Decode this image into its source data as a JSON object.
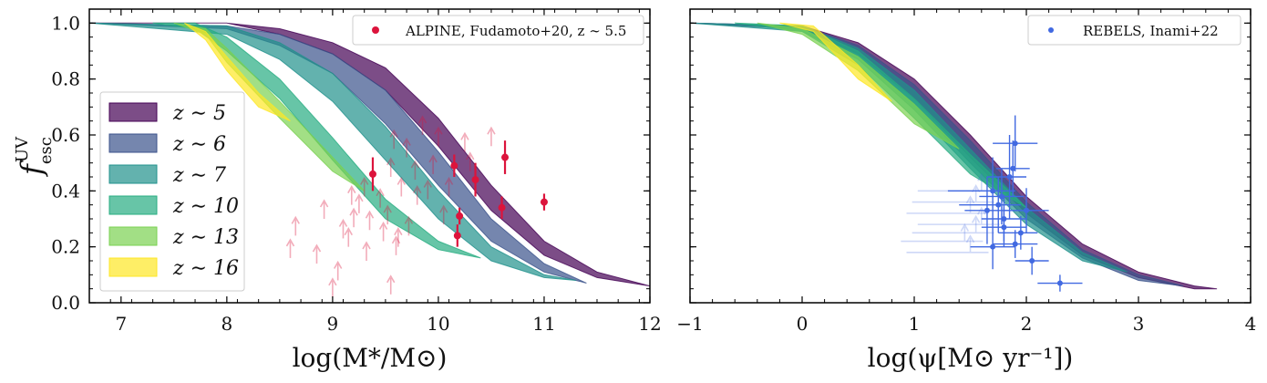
{
  "chart_data": [
    {
      "type": "area",
      "panel": "left",
      "xlabel": "log(M*/M⊙)",
      "ylabel": "f_esc^UV",
      "ylabel_main": "f",
      "ylabel_sup": "UV",
      "ylabel_sub": "esc",
      "xlim": [
        6.7,
        12
      ],
      "ylim": [
        0,
        1.05
      ],
      "xticks": [
        7,
        8,
        9,
        10,
        11,
        12
      ],
      "yticks": [
        0.0,
        0.2,
        0.4,
        0.6,
        0.8,
        1.0
      ],
      "xtick_labels": [
        "7",
        "8",
        "9",
        "10",
        "11",
        "12"
      ],
      "ytick_labels": [
        "0.0",
        "0.2",
        "0.4",
        "0.6",
        "0.8",
        "1.0"
      ],
      "legend_position": "center-left",
      "series": [
        {
          "name": "z ∼ 5",
          "label": "z ∼ 5",
          "color": "#440154",
          "x": [
            6.7,
            8.0,
            8.5,
            9.0,
            9.5,
            10.0,
            10.5,
            11.0,
            11.5,
            12.0
          ],
          "upper": [
            1.0,
            1.0,
            0.98,
            0.93,
            0.84,
            0.66,
            0.42,
            0.22,
            0.11,
            0.06
          ],
          "lower": [
            1.0,
            1.0,
            0.96,
            0.89,
            0.76,
            0.56,
            0.33,
            0.17,
            0.09,
            0.06
          ]
        },
        {
          "name": "z ∼ 6",
          "label": "z ∼ 6",
          "color": "#3b528b",
          "x": [
            6.7,
            8.0,
            8.5,
            9.0,
            9.5,
            10.0,
            10.5,
            11.0,
            11.4
          ],
          "upper": [
            1.0,
            0.99,
            0.96,
            0.89,
            0.76,
            0.54,
            0.3,
            0.14,
            0.07
          ],
          "lower": [
            1.0,
            0.98,
            0.92,
            0.82,
            0.64,
            0.42,
            0.22,
            0.11,
            0.07
          ]
        },
        {
          "name": "z ∼ 7",
          "label": "z ∼ 7",
          "color": "#21918c",
          "x": [
            6.7,
            8.0,
            8.5,
            9.0,
            9.5,
            10.0,
            10.5,
            11.0,
            11.3
          ],
          "upper": [
            1.0,
            0.99,
            0.93,
            0.82,
            0.63,
            0.4,
            0.2,
            0.1,
            0.08
          ],
          "lower": [
            1.0,
            0.96,
            0.87,
            0.72,
            0.51,
            0.3,
            0.15,
            0.09,
            0.08
          ]
        },
        {
          "name": "z ∼ 10",
          "label": "z ∼ 10",
          "color": "#27ad81",
          "x": [
            7.3,
            7.7,
            8.0,
            8.5,
            9.0,
            9.5,
            10.0,
            10.4
          ],
          "upper": [
            1.0,
            1.0,
            0.95,
            0.8,
            0.59,
            0.37,
            0.22,
            0.16
          ],
          "lower": [
            1.0,
            0.98,
            0.9,
            0.73,
            0.51,
            0.3,
            0.19,
            0.16
          ]
        },
        {
          "name": "z ∼ 13",
          "label": "z ∼ 13",
          "color": "#7ad151",
          "x": [
            7.5,
            7.8,
            8.0,
            8.5,
            9.0,
            9.3
          ],
          "upper": [
            1.0,
            0.98,
            0.91,
            0.72,
            0.52,
            0.4
          ],
          "lower": [
            1.0,
            0.96,
            0.86,
            0.66,
            0.47,
            0.4
          ]
        },
        {
          "name": "z ∼ 16",
          "label": "z ∼ 16",
          "color": "#fde725",
          "x": [
            7.6,
            7.8,
            8.0,
            8.3,
            8.6
          ],
          "upper": [
            1.0,
            0.97,
            0.88,
            0.75,
            0.65
          ],
          "lower": [
            1.0,
            0.94,
            0.83,
            0.7,
            0.65
          ]
        }
      ],
      "scatter": {
        "name": "ALPINE, Fudamoto+20, z ∼ 5.5",
        "label": "ALPINE, Fudamoto+20, z ∼ 5.5",
        "color": "#dc143c",
        "points": [
          {
            "x": 9.38,
            "y": 0.46,
            "err_lo": 0.06,
            "err_hi": 0.06
          },
          {
            "x": 10.15,
            "y": 0.49,
            "err_lo": 0.04,
            "err_hi": 0.04
          },
          {
            "x": 10.2,
            "y": 0.31,
            "err_lo": 0.03,
            "err_hi": 0.03
          },
          {
            "x": 10.18,
            "y": 0.24,
            "err_lo": 0.04,
            "err_hi": 0.04
          },
          {
            "x": 10.35,
            "y": 0.44,
            "err_lo": 0.06,
            "err_hi": 0.06
          },
          {
            "x": 10.6,
            "y": 0.34,
            "err_lo": 0.04,
            "err_hi": 0.04
          },
          {
            "x": 10.63,
            "y": 0.52,
            "err_lo": 0.06,
            "err_hi": 0.06
          },
          {
            "x": 11.0,
            "y": 0.36,
            "err_lo": 0.03,
            "err_hi": 0.03
          }
        ],
        "lower_limits": [
          {
            "x": 8.6,
            "y": 0.16
          },
          {
            "x": 8.65,
            "y": 0.24
          },
          {
            "x": 8.85,
            "y": 0.14
          },
          {
            "x": 8.92,
            "y": 0.3
          },
          {
            "x": 9.05,
            "y": 0.08
          },
          {
            "x": 9.1,
            "y": 0.23
          },
          {
            "x": 9.15,
            "y": 0.2
          },
          {
            "x": 9.18,
            "y": 0.35
          },
          {
            "x": 9.2,
            "y": 0.27
          },
          {
            "x": 9.25,
            "y": 0.32
          },
          {
            "x": 9.3,
            "y": 0.38
          },
          {
            "x": 9.32,
            "y": 0.15
          },
          {
            "x": 9.35,
            "y": 0.26
          },
          {
            "x": 9.45,
            "y": 0.34
          },
          {
            "x": 9.48,
            "y": 0.22
          },
          {
            "x": 9.52,
            "y": 0.28
          },
          {
            "x": 9.55,
            "y": 0.45
          },
          {
            "x": 9.58,
            "y": 0.55
          },
          {
            "x": 9.6,
            "y": 0.17
          },
          {
            "x": 9.62,
            "y": 0.2
          },
          {
            "x": 9.65,
            "y": 0.38
          },
          {
            "x": 9.7,
            "y": 0.52
          },
          {
            "x": 9.72,
            "y": 0.24
          },
          {
            "x": 9.78,
            "y": 0.44
          },
          {
            "x": 9.8,
            "y": 0.35
          },
          {
            "x": 9.85,
            "y": 0.6
          },
          {
            "x": 9.9,
            "y": 0.37
          },
          {
            "x": 9.95,
            "y": 0.46
          },
          {
            "x": 10.0,
            "y": 0.56
          },
          {
            "x": 10.05,
            "y": 0.28
          },
          {
            "x": 10.1,
            "y": 0.38
          },
          {
            "x": 10.25,
            "y": 0.54
          },
          {
            "x": 10.3,
            "y": 0.47
          },
          {
            "x": 10.5,
            "y": 0.56
          },
          {
            "x": 9.0,
            "y": 0.02
          },
          {
            "x": 9.55,
            "y": 0.03
          }
        ]
      }
    },
    {
      "type": "area",
      "panel": "right",
      "xlabel": "log(ψ[M⊙ yr⁻¹])",
      "xlim": [
        -1,
        4
      ],
      "ylim": [
        0,
        1.05
      ],
      "xticks": [
        -1,
        0,
        1,
        2,
        3,
        4
      ],
      "xtick_labels": [
        "−1",
        "0",
        "1",
        "2",
        "3",
        "4"
      ],
      "legend_position": "top-right",
      "series": [
        {
          "name": "z ∼ 5",
          "color": "#440154",
          "x": [
            -1.0,
            0.0,
            0.5,
            1.0,
            1.5,
            2.0,
            2.5,
            3.0,
            3.5,
            3.7
          ],
          "upper": [
            1.0,
            0.99,
            0.93,
            0.8,
            0.6,
            0.38,
            0.21,
            0.11,
            0.06,
            0.05
          ],
          "lower": [
            1.0,
            0.98,
            0.89,
            0.73,
            0.52,
            0.32,
            0.17,
            0.09,
            0.05,
            0.05
          ]
        },
        {
          "name": "z ∼ 6",
          "color": "#3b528b",
          "x": [
            -1.0,
            0.0,
            0.5,
            1.0,
            1.5,
            2.0,
            2.5,
            3.0,
            3.4
          ],
          "upper": [
            1.0,
            0.99,
            0.92,
            0.78,
            0.58,
            0.36,
            0.19,
            0.1,
            0.06
          ],
          "lower": [
            1.0,
            0.98,
            0.88,
            0.71,
            0.5,
            0.3,
            0.16,
            0.08,
            0.06
          ]
        },
        {
          "name": "z ∼ 7",
          "color": "#21918c",
          "x": [
            -1.0,
            0.0,
            0.5,
            1.0,
            1.5,
            2.0,
            2.5,
            2.9
          ],
          "upper": [
            1.0,
            0.99,
            0.91,
            0.76,
            0.55,
            0.34,
            0.18,
            0.11
          ],
          "lower": [
            1.0,
            0.97,
            0.87,
            0.69,
            0.48,
            0.28,
            0.15,
            0.11
          ]
        },
        {
          "name": "z ∼ 10",
          "color": "#27ad81",
          "x": [
            -0.6,
            0.0,
            0.5,
            1.0,
            1.5,
            2.0
          ],
          "upper": [
            1.0,
            0.99,
            0.9,
            0.73,
            0.53,
            0.34
          ],
          "lower": [
            1.0,
            0.97,
            0.85,
            0.66,
            0.46,
            0.34
          ]
        },
        {
          "name": "z ∼ 13",
          "color": "#7ad151",
          "x": [
            -0.4,
            0.0,
            0.5,
            1.0,
            1.4
          ],
          "upper": [
            1.0,
            0.98,
            0.88,
            0.71,
            0.55
          ],
          "lower": [
            1.0,
            0.96,
            0.83,
            0.64,
            0.55
          ]
        },
        {
          "name": "z ∼ 16",
          "color": "#fde725",
          "x": [
            -0.2,
            0.1,
            0.5,
            0.8
          ],
          "upper": [
            1.0,
            0.99,
            0.85,
            0.72
          ],
          "lower": [
            1.0,
            0.97,
            0.8,
            0.72
          ]
        }
      ],
      "scatter": {
        "name": "REBELS, Inami+22",
        "label": "REBELS, Inami+22",
        "color": "#4169e1",
        "points": [
          {
            "x": 1.7,
            "y": 0.4,
            "xerr_lo": 0.4,
            "xerr_hi": 0.2,
            "yerr": 0.12
          },
          {
            "x": 1.75,
            "y": 0.35,
            "xerr_lo": 0.35,
            "xerr_hi": 0.2,
            "yerr": 0.1
          },
          {
            "x": 1.8,
            "y": 0.3,
            "xerr_lo": 0.2,
            "xerr_hi": 0.2,
            "yerr": 0.08
          },
          {
            "x": 1.85,
            "y": 0.45,
            "xerr_lo": 0.2,
            "xerr_hi": 0.15,
            "yerr": 0.15
          },
          {
            "x": 1.9,
            "y": 0.57,
            "xerr_lo": 0.2,
            "xerr_hi": 0.2,
            "yerr": 0.1
          },
          {
            "x": 1.95,
            "y": 0.25,
            "xerr_lo": 0.2,
            "xerr_hi": 0.15,
            "yerr": 0.06
          },
          {
            "x": 1.7,
            "y": 0.2,
            "xerr_lo": 0.2,
            "xerr_hi": 0.2,
            "yerr": 0.08
          },
          {
            "x": 1.8,
            "y": 0.27,
            "xerr_lo": 0.2,
            "xerr_hi": 0.2,
            "yerr": 0.07
          },
          {
            "x": 1.88,
            "y": 0.48,
            "xerr_lo": 0.15,
            "xerr_hi": 0.15,
            "yerr": 0.1
          },
          {
            "x": 2.05,
            "y": 0.15,
            "xerr_lo": 0.15,
            "xerr_hi": 0.15,
            "yerr": 0.05
          },
          {
            "x": 2.3,
            "y": 0.07,
            "xerr_lo": 0.2,
            "xerr_hi": 0.2,
            "yerr": 0.03
          },
          {
            "x": 1.9,
            "y": 0.21,
            "xerr_lo": 0.2,
            "xerr_hi": 0.2,
            "yerr": 0.05
          },
          {
            "x": 1.78,
            "y": 0.38,
            "xerr_lo": 0.2,
            "xerr_hi": 0.2,
            "yerr": 0.1
          },
          {
            "x": 1.65,
            "y": 0.33,
            "xerr_lo": 0.2,
            "xerr_hi": 0.2,
            "yerr": 0.12
          },
          {
            "x": 2.0,
            "y": 0.33,
            "xerr_lo": 0.2,
            "xerr_hi": 0.2,
            "yerr": 0.08
          }
        ],
        "faint_limits": [
          {
            "x": 1.6,
            "y": 0.4
          },
          {
            "x": 1.5,
            "y": 0.32
          },
          {
            "x": 1.55,
            "y": 0.25
          },
          {
            "x": 1.45,
            "y": 0.22
          },
          {
            "x": 1.5,
            "y": 0.18
          },
          {
            "x": 1.6,
            "y": 0.28
          },
          {
            "x": 1.55,
            "y": 0.36
          }
        ]
      }
    }
  ]
}
